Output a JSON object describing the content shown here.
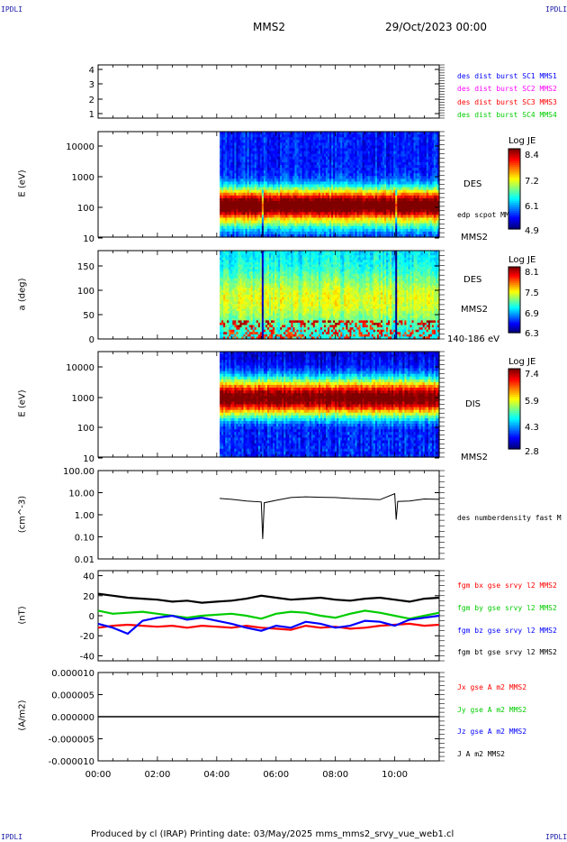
{
  "corner_label": "IPDLI",
  "header": {
    "spacecraft": "MMS2",
    "date": "29/Oct/2023 00:00"
  },
  "footer": "Produced by cl (IRAP)   Printing date: 03/May/2025   mms_mms2_srvy_vue_web1.cl",
  "time_axis": {
    "ticks": [
      "00:00",
      "02:00",
      "04:00",
      "06:00",
      "08:00",
      "10:00"
    ],
    "range_hours": [
      0,
      11.5
    ]
  },
  "panels": {
    "burst": {
      "ticks": [
        "4",
        "3",
        "2",
        "1"
      ],
      "legend": [
        {
          "text": "des dist burst SC1 MMS1",
          "color": "#0000ff"
        },
        {
          "text": "des dist burst SC2 MMS2",
          "color": "#ff00ff"
        },
        {
          "text": "des dist burst SC3 MMS3",
          "color": "#ff0000"
        },
        {
          "text": "des dist burst SC4 MMS4",
          "color": "#00cc00"
        }
      ]
    },
    "des_energy": {
      "ylabel": "E (eV)",
      "ticks": [
        "10000",
        "1000",
        "100",
        "10"
      ],
      "label": "DES",
      "extra": "edp scpot MMS2",
      "sc": "MMS2",
      "colorbar": {
        "title": "Log JE",
        "ticks": [
          "8.4",
          "7.2",
          "6.1",
          "4.9"
        ]
      }
    },
    "des_pitch": {
      "ylabel": "a (deg)",
      "ticks": [
        "150",
        "100",
        "50",
        "0"
      ],
      "label": "DES",
      "sc": "MMS2",
      "range": "140-186 eV",
      "colorbar": {
        "title": "Log JE",
        "ticks": [
          "8.1",
          "7.5",
          "6.9",
          "6.3"
        ]
      }
    },
    "dis_energy": {
      "ylabel": "E (eV)",
      "ticks": [
        "10000",
        "1000",
        "100",
        "10"
      ],
      "label": "DIS",
      "sc": "MMS2",
      "colorbar": {
        "title": "Log JE",
        "ticks": [
          "7.4",
          "5.9",
          "4.3",
          "2.8"
        ]
      }
    },
    "density": {
      "ylabel": "(cm^-3)",
      "ticks": [
        "100.00",
        "10.00",
        "1.00",
        "0.10",
        "0.01"
      ],
      "legend": "des numberdensity fast M"
    },
    "field": {
      "ylabel": "(nT)",
      "ticks": [
        "40",
        "20",
        "0",
        "-20",
        "-40"
      ],
      "legend": [
        {
          "text": "fgm bx gse srvy l2 MMS2",
          "color": "#ff0000"
        },
        {
          "text": "fgm by gse srvy l2 MMS2",
          "color": "#00cc00"
        },
        {
          "text": "fgm bz gse srvy l2 MMS2",
          "color": "#0000ff"
        },
        {
          "text": "fgm bt gse srvy l2 MMS2",
          "color": "#000000"
        }
      ]
    },
    "current": {
      "ylabel": "(A/m2)",
      "ticks": [
        "0.000010",
        "0.000005",
        "0.000000",
        "-0.000005",
        "-0.000010"
      ],
      "legend": [
        {
          "text": "Jx gse A m2 MMS2",
          "color": "#ff0000"
        },
        {
          "text": "Jy gse A m2 MMS2",
          "color": "#00cc00"
        },
        {
          "text": "Jz gse A m2 MMS2",
          "color": "#0000ff"
        },
        {
          "text": "J A m2 MMS2",
          "color": "#000000"
        }
      ]
    }
  },
  "chart_data": [
    {
      "type": "heatmap",
      "name": "des_energy_spectrogram",
      "ylabel": "E (eV)",
      "y_scale": "log",
      "ylim": [
        10,
        30000
      ],
      "colorbar": {
        "label": "Log JE",
        "range": [
          4.9,
          8.4
        ]
      },
      "data_start_hours": 4.1,
      "peak_band_eV": [
        40,
        150
      ],
      "dropout_times_hours": [
        5.55,
        10.05
      ]
    },
    {
      "type": "heatmap",
      "name": "des_pitch_angle",
      "ylabel": "a (deg)",
      "ylim": [
        0,
        180
      ],
      "energy_range": "140-186 eV",
      "colorbar": {
        "label": "Log JE",
        "range": [
          6.3,
          8.1
        ]
      },
      "data_start_hours": 4.1
    },
    {
      "type": "heatmap",
      "name": "dis_energy_spectrogram",
      "ylabel": "E (eV)",
      "y_scale": "log",
      "ylim": [
        10,
        30000
      ],
      "colorbar": {
        "label": "Log JE",
        "range": [
          2.8,
          7.4
        ]
      },
      "data_start_hours": 4.1,
      "peak_band_eV": [
        700,
        4000
      ]
    },
    {
      "type": "line",
      "name": "des_numberdensity",
      "ylabel": "(cm^-3)",
      "y_scale": "log",
      "ylim": [
        0.01,
        100
      ],
      "x": [
        4.1,
        4.5,
        5.0,
        5.5,
        5.55,
        5.6,
        6.0,
        6.5,
        7.0,
        7.5,
        8.0,
        8.5,
        9.0,
        9.5,
        10.0,
        10.05,
        10.1,
        10.5,
        11.0,
        11.5
      ],
      "series": [
        {
          "values": [
            5.5,
            5.0,
            4.2,
            3.8,
            0.08,
            3.5,
            4.5,
            6.0,
            6.5,
            6.2,
            6.0,
            5.5,
            5.2,
            4.8,
            9.0,
            0.6,
            4.0,
            4.2,
            5.2,
            5.0
          ]
        }
      ]
    },
    {
      "type": "line",
      "name": "magnetic_field",
      "ylabel": "(nT)",
      "ylim": [
        -45,
        45
      ],
      "x": [
        0,
        0.5,
        1.0,
        1.5,
        2.0,
        2.5,
        3.0,
        3.5,
        4.0,
        4.5,
        5.0,
        5.5,
        6.0,
        6.5,
        7.0,
        7.5,
        8.0,
        8.5,
        9.0,
        9.5,
        10.0,
        10.5,
        11.0,
        11.5
      ],
      "series": [
        {
          "name": "fgm bx gse srvy l2 MMS2",
          "values": [
            -12,
            -10,
            -9,
            -10,
            -11,
            -10,
            -12,
            -10,
            -11,
            -12,
            -10,
            -12,
            -13,
            -14,
            -10,
            -12,
            -11,
            -13,
            -12,
            -10,
            -9,
            -8,
            -10,
            -9
          ]
        },
        {
          "name": "fgm by gse srvy l2 MMS2",
          "values": [
            5,
            2,
            3,
            4,
            2,
            0,
            -2,
            0,
            1,
            2,
            0,
            -3,
            2,
            4,
            3,
            0,
            -2,
            2,
            5,
            3,
            0,
            -3,
            0,
            3
          ]
        },
        {
          "name": "fgm bz gse srvy l2 MMS2",
          "values": [
            -8,
            -12,
            -18,
            -5,
            -2,
            0,
            -4,
            -2,
            -5,
            -8,
            -12,
            -15,
            -10,
            -12,
            -6,
            -8,
            -12,
            -10,
            -5,
            -6,
            -10,
            -4,
            -2,
            0
          ]
        },
        {
          "name": "fgm bt gse srvy l2 MMS2",
          "values": [
            22,
            20,
            18,
            17,
            16,
            14,
            15,
            13,
            14,
            15,
            17,
            20,
            18,
            16,
            17,
            18,
            16,
            15,
            17,
            18,
            16,
            14,
            17,
            18
          ]
        }
      ]
    },
    {
      "type": "line",
      "name": "current_density",
      "ylabel": "(A/m2)",
      "ylim": [
        -1e-05,
        1e-05
      ],
      "x": [
        0,
        11.5
      ],
      "series": [
        {
          "name": "J A m2 MMS2",
          "values": [
            0,
            0
          ]
        }
      ]
    }
  ]
}
